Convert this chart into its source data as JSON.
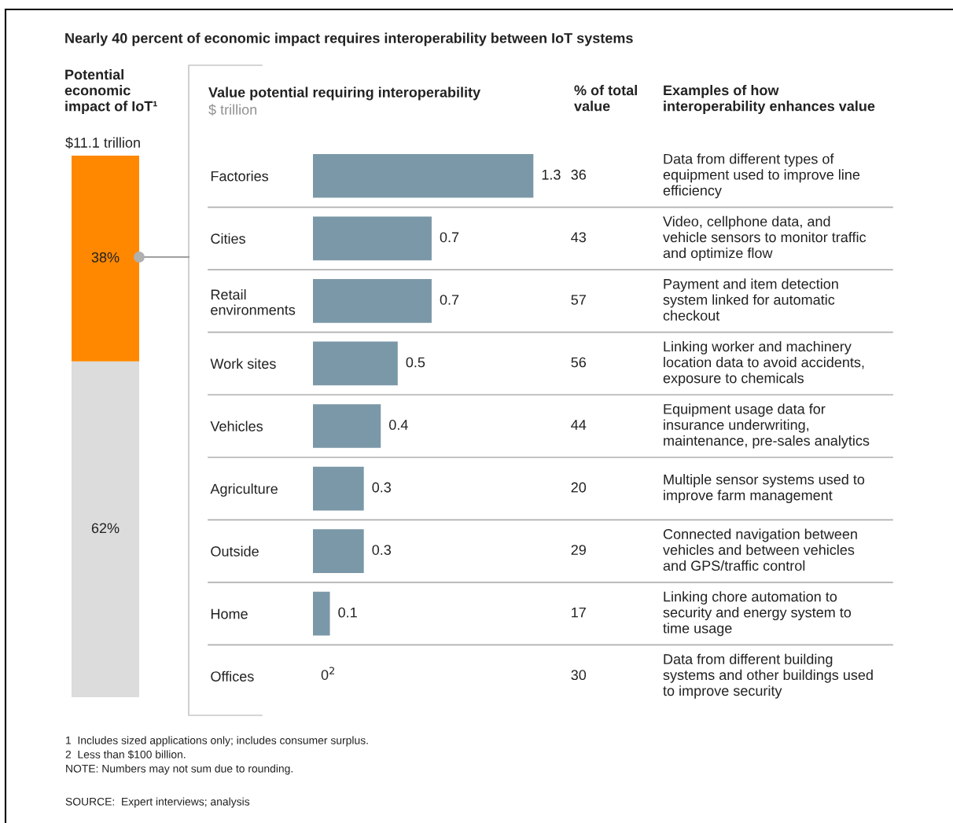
{
  "chart_data": [
    {
      "type": "bar",
      "stacked": true,
      "title": "Potential economic impact of IoT¹",
      "subtitle": "$11.1 trillion",
      "categories": [
        null
      ],
      "series": [
        {
          "color": "#dcdcdc",
          "values": [
            62
          ],
          "value_labels": [
            "62%"
          ]
        },
        {
          "color": "#ff8800",
          "values": [
            38
          ],
          "value_labels": [
            "38%"
          ]
        }
      ],
      "annotations": [
        "Nearly 40 percent of economic impact requires interoperability between IoT systems"
      ]
    },
    {
      "type": "bar",
      "orientation": "horizontal",
      "title": "Value potential requiring interoperability",
      "subtitle": "$ trillion",
      "categories": [
        "Factories",
        "Cities",
        "Retail\nenvironments",
        "Work sites",
        "Vehicles",
        "Agriculture",
        "Outside",
        "Home",
        "Offices"
      ],
      "values": [
        1.3,
        0.7,
        0.7,
        0.5,
        0.4,
        0.3,
        0.3,
        0.1,
        0
      ],
      "value_labels": [
        "1.3",
        "0.7",
        "0.7",
        "0.5",
        "0.4",
        "0.3",
        "0.3",
        "0.1",
        "0$^{2}$"
      ],
      "color": "#7b98a8",
      "annotations": [
        "1  Includes sized applications only; includes consumer surplus.",
        "2  Less than $100 billion.",
        "NOTE: Numbers may not sum due to rounding.",
        "SOURCE:  Expert interviews; analysis"
      ]
    },
    {
      "type": "other",
      "title": "% of total\nvalue",
      "values": [
        36,
        43,
        57,
        56,
        44,
        20,
        29,
        17,
        30
      ],
      "data_labels": true
    },
    {
      "type": "other",
      "title": "Examples of how\ninteroperability enhances value",
      "annotations": [
        "Data from different types of\nequipment used to improve line\nefficiency",
        "Video, cellphone data, and\nvehicle sensors to monitor traffic\nand optimize flow",
        "Payment and item detection\nsystem linked for automatic\ncheckout",
        "Linking worker and machinery\nlocation data to avoid accidents,\nexposure to chemicals",
        "Equipment usage data for\ninsurance underwriting,\nmaintenance, pre-sales analytics",
        "Multiple sensor systems used to\nimprove farm management",
        "Connected navigation between\nvehicles and between vehicles\nand GPS/traffic control",
        "Linking chore automation to\nsecurity and energy system to\ntime usage",
        "Data from different building\nsystems and other buildings used\nto improve security"
      ]
    }
  ]
}
